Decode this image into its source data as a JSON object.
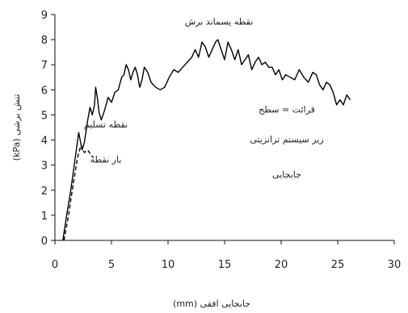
{
  "chart_data": {
    "type": "line",
    "title": "",
    "xlabel": "جابجایی افقی (mm)",
    "ylabel": "تنش برشی (kPa)",
    "xlim": [
      0,
      30
    ],
    "ylim": [
      0,
      9
    ],
    "xticks": [
      "0",
      "5",
      "10",
      "15",
      "20",
      "25",
      "30"
    ],
    "yticks": [
      "0",
      "1",
      "2",
      "3",
      "4",
      "5",
      "6",
      "7",
      "8",
      "9"
    ],
    "grid": false,
    "series": [
      {
        "style": "solid",
        "x": [
          0.7,
          1.0,
          1.4,
          1.8,
          2.1,
          2.4,
          2.6,
          2.9,
          3.1,
          3.3,
          3.5,
          3.6,
          3.75,
          3.9,
          4.1,
          4.4,
          4.7,
          5.0,
          5.3,
          5.6,
          5.9,
          6.1,
          6.3,
          6.5,
          6.7,
          6.9,
          7.1,
          7.3,
          7.5,
          7.7,
          7.9,
          8.2,
          8.5,
          8.9,
          9.3,
          9.7,
          10.1,
          10.5,
          10.9,
          11.3,
          11.7,
          12.1,
          12.4,
          12.7,
          13.0,
          13.3,
          13.6,
          13.9,
          14.2,
          14.4,
          14.7,
          15.0,
          15.3,
          15.6,
          15.9,
          16.2,
          16.5,
          16.8,
          17.1,
          17.4,
          17.7,
          18.0,
          18.3,
          18.6,
          18.9,
          19.2,
          19.5,
          19.8,
          20.1,
          20.4,
          20.8,
          21.2,
          21.6,
          22.0,
          22.4,
          22.8,
          23.1,
          23.4,
          23.7,
          24.0,
          24.3,
          24.6,
          24.9,
          25.2,
          25.5,
          25.8,
          26.1
        ],
        "y": [
          0.0,
          0.9,
          2.0,
          3.3,
          4.3,
          3.6,
          3.9,
          4.8,
          5.3,
          5.0,
          5.4,
          6.1,
          5.7,
          5.1,
          4.8,
          5.2,
          5.7,
          5.5,
          5.9,
          6.0,
          6.5,
          6.6,
          7.0,
          6.8,
          6.4,
          6.7,
          6.9,
          6.6,
          6.1,
          6.4,
          6.9,
          6.7,
          6.3,
          6.1,
          6.0,
          6.1,
          6.5,
          6.8,
          6.7,
          6.9,
          7.1,
          7.3,
          7.6,
          7.3,
          7.9,
          7.7,
          7.3,
          7.6,
          7.9,
          8.0,
          7.6,
          7.2,
          7.9,
          7.6,
          7.2,
          7.6,
          7.0,
          7.2,
          7.4,
          6.8,
          7.1,
          7.3,
          7.0,
          7.1,
          6.9,
          6.9,
          6.6,
          6.8,
          6.4,
          6.6,
          6.5,
          6.4,
          6.8,
          6.5,
          6.3,
          6.7,
          6.6,
          6.2,
          6.0,
          6.3,
          6.2,
          5.9,
          5.4,
          5.6,
          5.4,
          5.8,
          5.6
        ]
      },
      {
        "style": "dashed",
        "x": [
          0.8,
          1.2,
          1.6,
          2.0,
          2.3,
          2.6,
          2.9,
          3.2,
          3.4
        ],
        "y": [
          0.0,
          1.0,
          2.2,
          3.3,
          3.8,
          3.5,
          3.6,
          3.4,
          3.3
        ]
      }
    ],
    "annotations": [
      {
        "text": "نقطه پسماند برش",
        "x": 14.5,
        "y": 8.6
      },
      {
        "text": "نقطه تسلیم",
        "x": 4.5,
        "y": 4.5
      },
      {
        "text": "بار نقطه",
        "x": 4.5,
        "y": 3.1
      },
      {
        "text": "قرائت = سطح",
        "x": 20.5,
        "y": 5.1
      },
      {
        "text": "زیر سیستم ترانزیتی",
        "x": 20.5,
        "y": 3.9
      },
      {
        "text": "جابجایی",
        "x": 20.5,
        "y": 2.5
      }
    ]
  }
}
